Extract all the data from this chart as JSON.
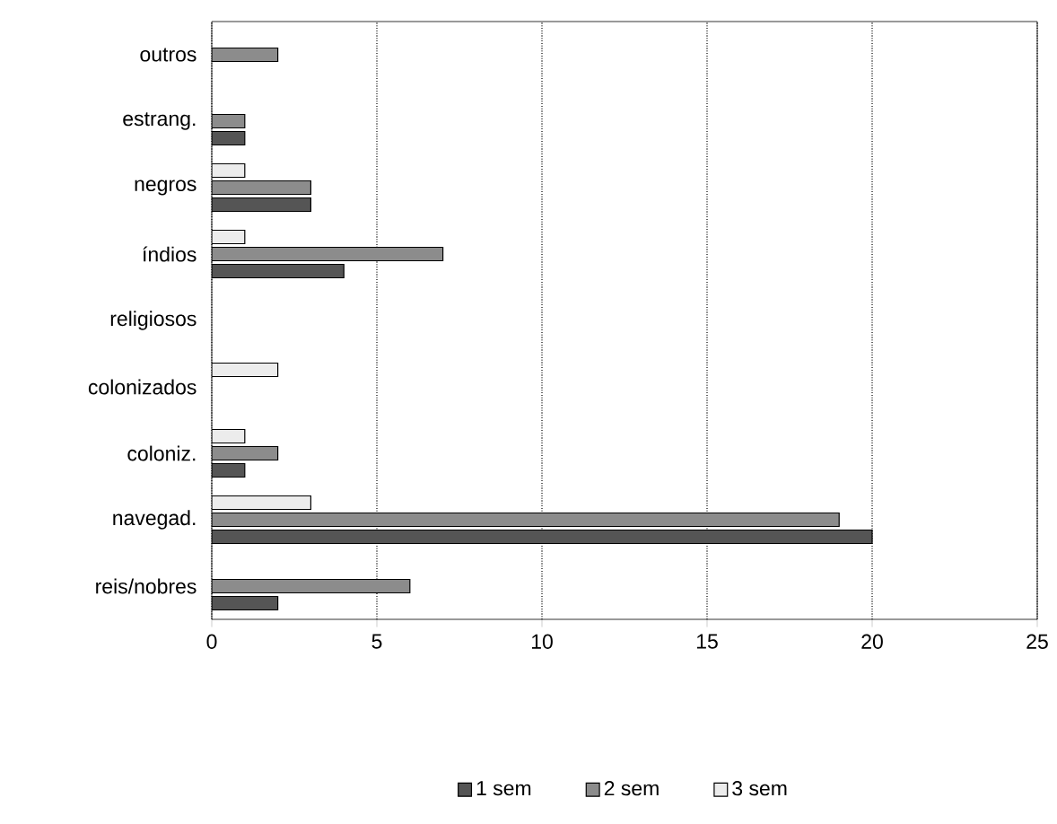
{
  "chart_data": {
    "type": "bar",
    "orientation": "horizontal",
    "categories": [
      "outros",
      "estrang.",
      "negros",
      "índios",
      "religiosos",
      "colonizados",
      "coloniz.",
      "navegad.",
      "reis/nobres"
    ],
    "series": [
      {
        "name": "1 sem",
        "color": "#555555",
        "values": [
          null,
          1,
          3,
          4,
          null,
          null,
          1,
          20,
          2
        ]
      },
      {
        "name": "2 sem",
        "color": "#8c8c8c",
        "values": [
          2,
          1,
          3,
          7,
          null,
          null,
          2,
          19,
          6
        ]
      },
      {
        "name": "3 sem",
        "color": "#ececec",
        "values": [
          null,
          null,
          1,
          1,
          null,
          2,
          1,
          3,
          null
        ]
      }
    ],
    "xlim": [
      0,
      25
    ],
    "xticks": [
      0,
      5,
      10,
      15,
      20,
      25
    ],
    "grid": "x",
    "legend": "bottom"
  }
}
